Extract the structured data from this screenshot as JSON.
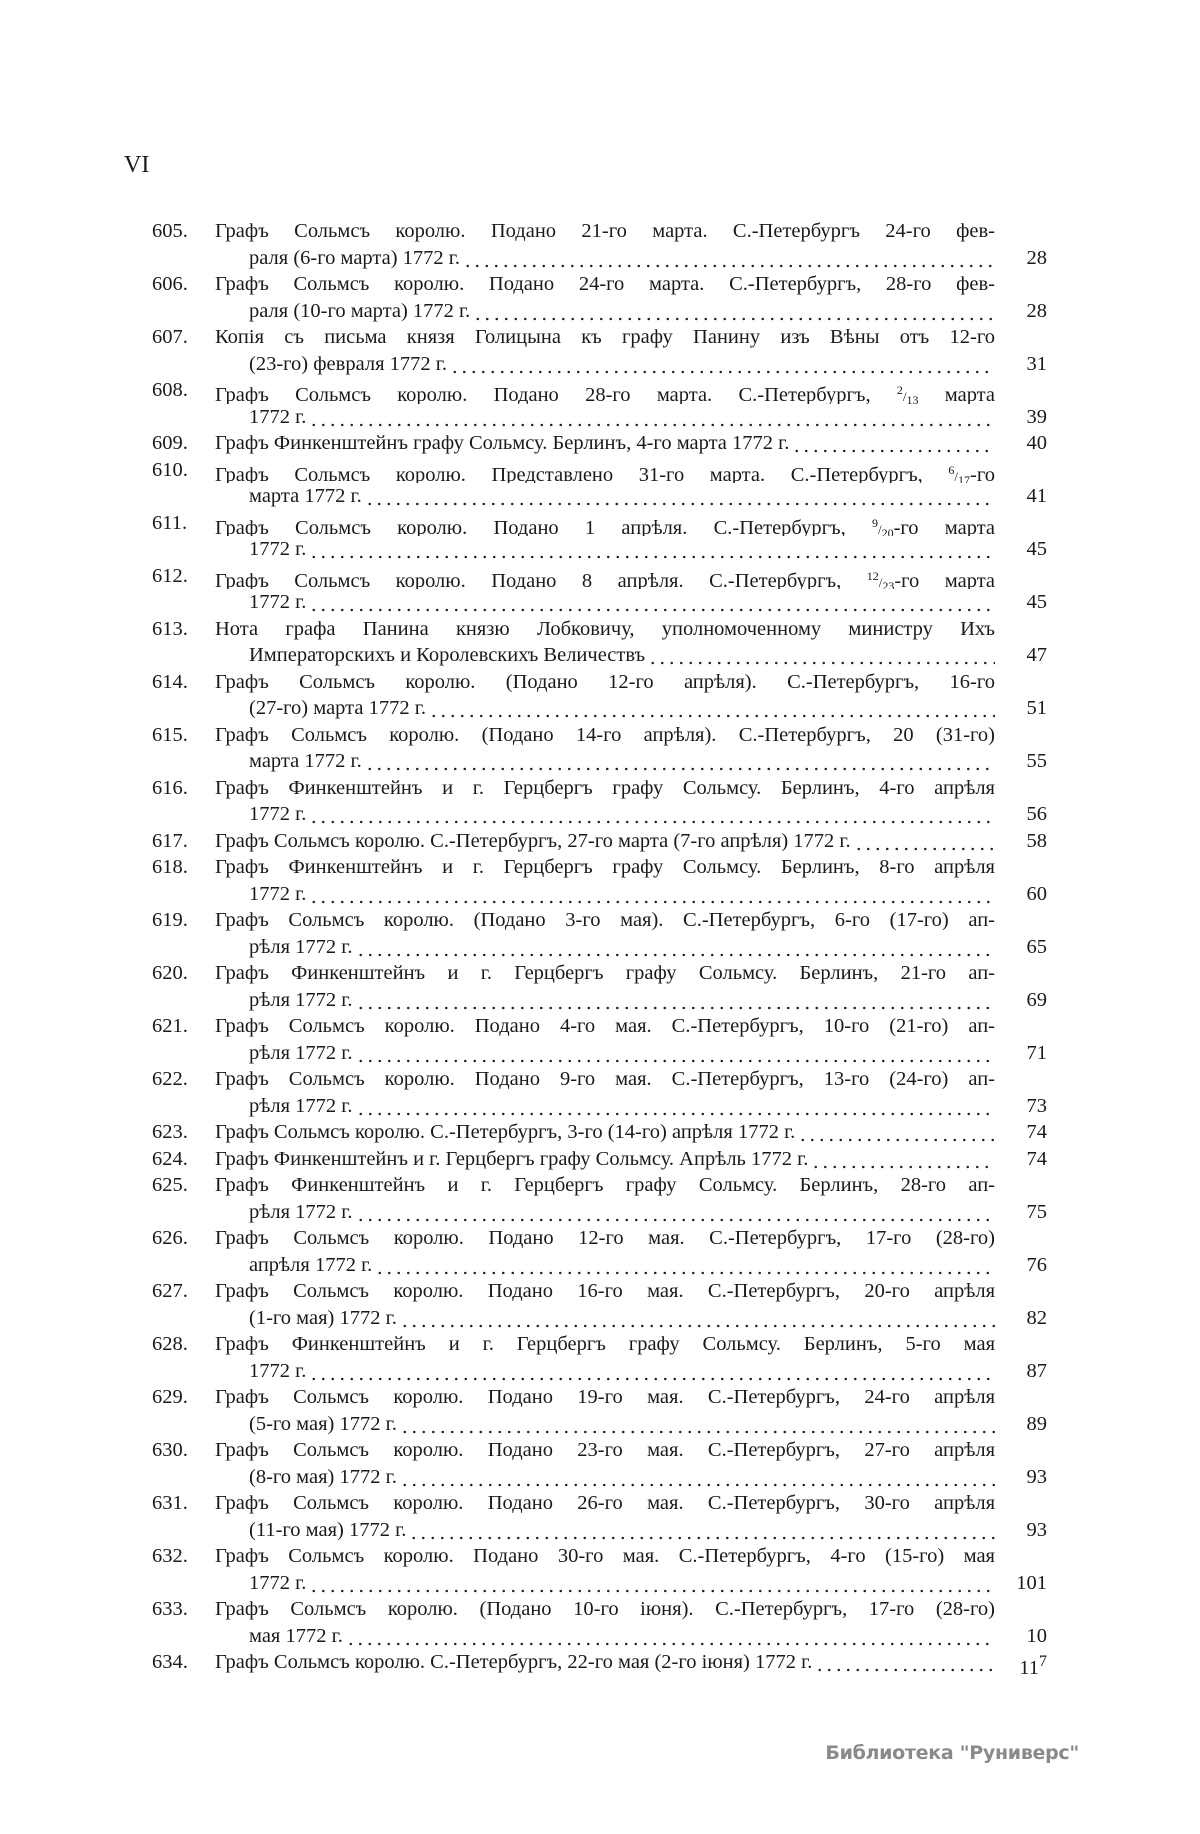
{
  "page_number": "VI",
  "entries": [
    {
      "num": "605.",
      "lines": [
        [
          "Графъ Сольмсъ королю. Подано 21-го марта. С.-Петербургъ 24-го фев-"
        ],
        [
          "раля (6-го марта) 1772 г."
        ]
      ],
      "page": "28"
    },
    {
      "num": "606.",
      "lines": [
        [
          "Графъ Сольмсъ королю. Подано 24-го марта. С.-Петербургъ, 28-го фев-"
        ],
        [
          "раля (10-го марта) 1772 г."
        ]
      ],
      "page": "28"
    },
    {
      "num": "607.",
      "lines": [
        [
          "Копія съ письма князя Голицына къ графу Панину изъ Вѣны отъ 12-го"
        ],
        [
          "(23-го) февраля 1772 г."
        ]
      ],
      "page": "31"
    },
    {
      "num": "608.",
      "lines": [
        [
          "Графъ Сольмсъ королю. Подано 28-го марта. С.-Петербургъ, ",
          {
            "sup": "2",
            "sub": "13"
          },
          " марта"
        ],
        [
          "1772 г."
        ]
      ],
      "page": "39"
    },
    {
      "num": "609.",
      "lines": [
        [
          "Графъ Финкенштейнъ графу Сольмсу. Берлинъ, 4-го марта 1772 г."
        ]
      ],
      "page": "40"
    },
    {
      "num": "610.",
      "lines": [
        [
          "Графъ Сольмсъ королю. Представлено 31-го марта. С.-Петербургъ, ",
          {
            "sup": "6",
            "sub": "17"
          },
          "-го"
        ],
        [
          "марта 1772 г."
        ]
      ],
      "page": "41"
    },
    {
      "num": "611.",
      "lines": [
        [
          "Графъ Сольмсъ королю. Подано 1 апрѣля. С.-Петербургъ, ",
          {
            "sup": "9",
            "sub": "20"
          },
          "-го марта"
        ],
        [
          "1772 г."
        ]
      ],
      "page": "45"
    },
    {
      "num": "612.",
      "lines": [
        [
          "Графъ Сольмсъ королю. Подано 8 апрѣля. С.-Петербургъ, ",
          {
            "sup": "12",
            "sub": "23"
          },
          "-го марта"
        ],
        [
          "1772 г."
        ]
      ],
      "page": "45"
    },
    {
      "num": "613.",
      "lines": [
        [
          "Нота графа Панина князю Лобковичу, уполномоченному министру Ихъ"
        ],
        [
          "Императорскихъ и Королевскихъ Величествъ"
        ]
      ],
      "page": "47"
    },
    {
      "num": "614.",
      "lines": [
        [
          "Графъ Сольмсъ королю. (Подано 12-го апрѣля). С.-Петербургъ, 16-го"
        ],
        [
          "(27-го) марта 1772 г."
        ]
      ],
      "page": "51"
    },
    {
      "num": "615.",
      "lines": [
        [
          "Графъ Сольмсъ королю. (Подано 14-го апрѣля). С.-Петербургъ, 20 (31-го)"
        ],
        [
          "марта 1772 г."
        ]
      ],
      "page": "55"
    },
    {
      "num": "616.",
      "lines": [
        [
          "Графъ Финкенштейнъ и г. Герцбергъ графу Сольмсу. Берлинъ, 4-го апрѣля"
        ],
        [
          "1772 г."
        ]
      ],
      "page": "56"
    },
    {
      "num": "617.",
      "lines": [
        [
          "Графъ Сольмсъ королю. С.-Петербургъ, 27-го марта (7-го апрѣля) 1772 г."
        ]
      ],
      "page": "58"
    },
    {
      "num": "618.",
      "lines": [
        [
          "Графъ Финкенштейнъ и г. Герцбергъ графу Сольмсу. Берлинъ, 8-го апрѣля"
        ],
        [
          "1772 г."
        ]
      ],
      "page": "60"
    },
    {
      "num": "619.",
      "lines": [
        [
          "Графъ Сольмсъ королю. (Подано 3-го мая). С.-Петербургъ, 6-го (17-го) ап-"
        ],
        [
          "рѣля 1772 г."
        ]
      ],
      "page": "65"
    },
    {
      "num": "620.",
      "lines": [
        [
          "Графъ Финкенштейнъ и г. Герцбергъ графу Сольмсу. Берлинъ, 21-го ап-"
        ],
        [
          "рѣля 1772 г."
        ]
      ],
      "page": "69"
    },
    {
      "num": "621.",
      "lines": [
        [
          "Графъ Сольмсъ королю. Подано 4-го мая. С.-Петербургъ, 10-го (21-го) ап-"
        ],
        [
          "рѣля 1772 г."
        ]
      ],
      "page": "71"
    },
    {
      "num": "622.",
      "lines": [
        [
          "Графъ Сольмсъ королю. Подано 9-го мая. С.-Петербургъ, 13-го (24-го) ап-"
        ],
        [
          "рѣля 1772 г."
        ]
      ],
      "page": "73"
    },
    {
      "num": "623.",
      "lines": [
        [
          "Графъ Сольмсъ королю. С.-Петербургъ, 3-го (14-го) апрѣля 1772 г."
        ]
      ],
      "page": "74"
    },
    {
      "num": "624.",
      "lines": [
        [
          "Графъ Финкенштейнъ и г. Герцбергъ графу Сольмсу. Апрѣль 1772 г."
        ]
      ],
      "page": "74"
    },
    {
      "num": "625.",
      "lines": [
        [
          "Графъ Финкенштейнъ и г. Герцбергъ графу Сольмсу. Берлинъ, 28-го ап-"
        ],
        [
          "рѣля 1772 г."
        ]
      ],
      "page": "75"
    },
    {
      "num": "626.",
      "lines": [
        [
          "Графъ Сольмсъ королю. Подано 12-го мая. С.-Петербургъ, 17-го (28-го)"
        ],
        [
          "апрѣля 1772 г."
        ]
      ],
      "page": "76"
    },
    {
      "num": "627.",
      "lines": [
        [
          "Графъ Сольмсъ королю. Подано 16-го мая. С.-Петербургъ, 20-го апрѣля"
        ],
        [
          "(1-го мая) 1772 г."
        ]
      ],
      "page": "82"
    },
    {
      "num": "628.",
      "lines": [
        [
          "Графъ Финкенштейнъ и г. Герцбергъ графу Сольмсу. Берлинъ, 5-го мая"
        ],
        [
          "1772 г."
        ]
      ],
      "page": "87"
    },
    {
      "num": "629.",
      "lines": [
        [
          "Графъ Сольмсъ королю. Подано 19-го мая. С.-Петербургъ, 24-го апрѣля"
        ],
        [
          "(5-го мая) 1772 г."
        ]
      ],
      "page": "89"
    },
    {
      "num": "630.",
      "lines": [
        [
          "Графъ Сольмсъ королю. Подано 23-го мая. С.-Петербургъ, 27-го апрѣля"
        ],
        [
          "(8-го мая) 1772 г."
        ]
      ],
      "page": "93"
    },
    {
      "num": "631.",
      "lines": [
        [
          "Графъ Сольмсъ королю. Подано 26-го мая. С.-Петербургъ, 30-го апрѣля"
        ],
        [
          "(11-го мая) 1772 г."
        ]
      ],
      "page": "93"
    },
    {
      "num": "632.",
      "lines": [
        [
          "Графъ Сольмсъ королю. Подано 30-го мая. С.-Петербургъ, 4-го (15-го) мая"
        ],
        [
          "1772 г."
        ]
      ],
      "page": "101"
    },
    {
      "num": "633.",
      "lines": [
        [
          "Графъ Сольмсъ королю. (Подано 10-го іюня). С.-Петербургъ, 17-го (28-го)"
        ],
        [
          "мая 1772 г."
        ]
      ],
      "page": "10"
    },
    {
      "num": "634.",
      "lines": [
        [
          "Графъ Сольмсъ королю. С.-Петербургъ, 22-го мая (2-го іюня) 1772 г."
        ]
      ],
      "page": "11",
      "page_sup": "7"
    }
  ],
  "watermark": "Библиотека \"Руниверс\""
}
